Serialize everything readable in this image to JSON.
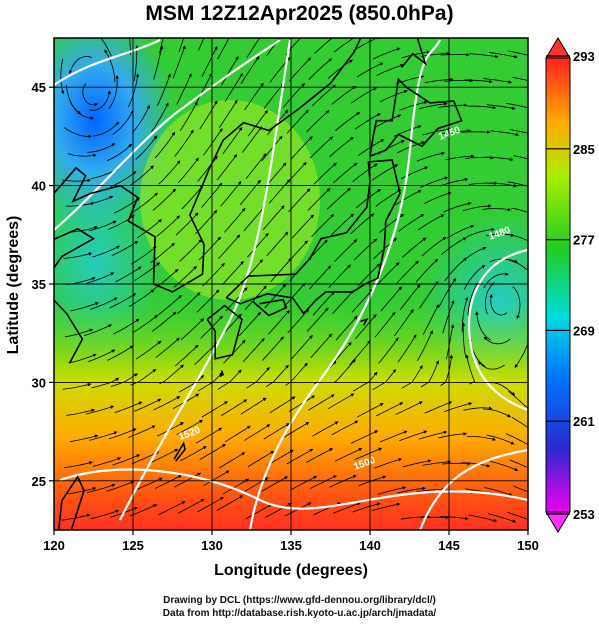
{
  "title": "MSM 12Z12Apr2025 (850.0hPa)",
  "footer": {
    "line1": "Drawing by DCL (https://www.gfd-dennou.org/library/dcl/)",
    "line2": "Data from http://database.rish.kyoto-u.ac.jp/arch/jmadata/"
  },
  "chart_data": {
    "type": "heatmap",
    "title": "MSM 12Z12Apr2025 (850.0hPa)",
    "xlabel": "Longitude (degrees)",
    "ylabel": "Latitude  (degrees)",
    "xlim": [
      120,
      150
    ],
    "ylim": [
      22.5,
      47.5
    ],
    "x_ticks": [
      "120",
      "125",
      "130",
      "135",
      "140",
      "145",
      "150"
    ],
    "y_ticks": [
      "25",
      "30",
      "35",
      "40",
      "45"
    ],
    "grid": true,
    "colorbar": {
      "ticks": [
        "293",
        "285",
        "277",
        "269",
        "261",
        "253"
      ],
      "range": [
        253,
        293
      ],
      "colors": [
        "#ff00ff",
        "#0000ff",
        "#00ffff",
        "#00ff00",
        "#ffff00",
        "#ff0000"
      ]
    },
    "contour_labels": [
      "1450",
      "1480",
      "1500",
      "1520"
    ]
  }
}
